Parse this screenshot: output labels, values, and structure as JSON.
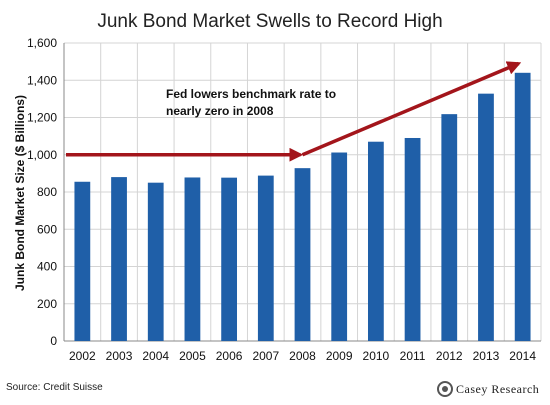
{
  "chart_data": {
    "type": "bar",
    "title": "Junk Bond Market Swells to Record High",
    "xlabel": "",
    "ylabel": "Junk Bond Market Size ($ Billions)",
    "categories": [
      "2002",
      "2003",
      "2004",
      "2005",
      "2006",
      "2007",
      "2008",
      "2009",
      "2010",
      "2011",
      "2012",
      "2013",
      "2014"
    ],
    "values": [
      855,
      880,
      850,
      878,
      877,
      888,
      928,
      1012,
      1070,
      1090,
      1218,
      1328,
      1440
    ],
    "ylim": [
      0,
      1600
    ],
    "yticks": [
      "0",
      "200",
      "400",
      "600",
      "800",
      "1,000",
      "1,200",
      "1,400",
      "1,600"
    ],
    "ytick_values": [
      0,
      200,
      400,
      600,
      800,
      1000,
      1200,
      1400,
      1600
    ],
    "grid": true,
    "legend": "none",
    "bar_color": "#1f5fa8",
    "annotation": {
      "text_line1": "Fed lowers benchmark rate to",
      "text_line2": "nearly zero in 2008",
      "arrow_color": "#a3151b",
      "arrow_flat_value": 1000,
      "arrow_end_value": 1490
    }
  },
  "source_note": "Source: Credit Suisse",
  "logo": {
    "text": "Casey Research",
    "mark_color": "#555555"
  }
}
